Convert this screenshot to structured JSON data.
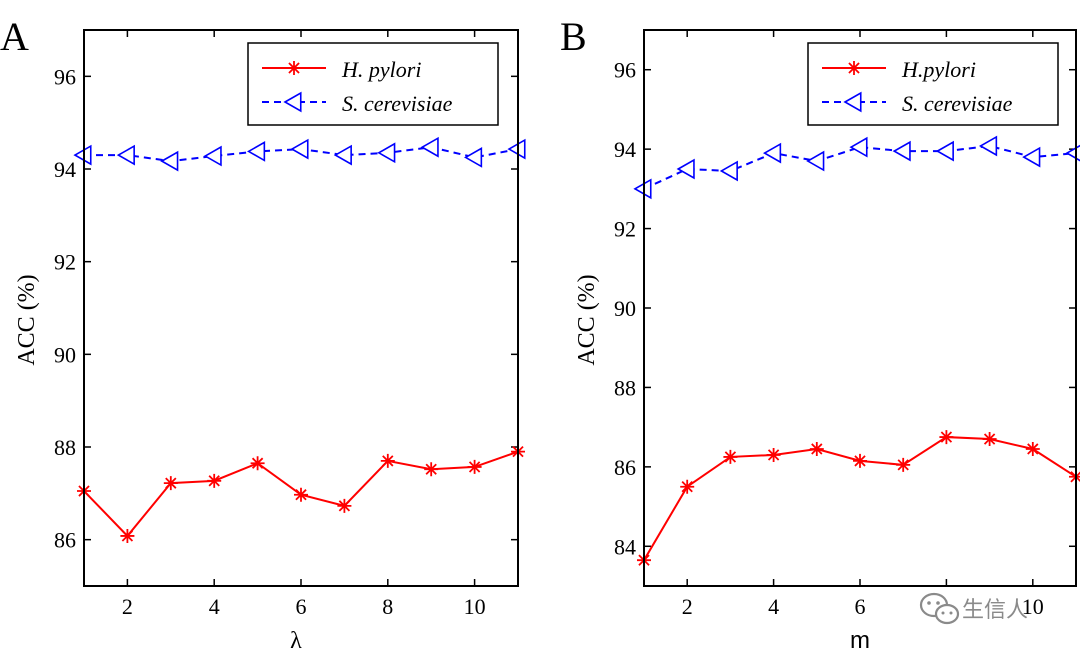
{
  "chart_data": [
    {
      "type": "line",
      "panel_label": "A",
      "xlabel": "λ",
      "ylabel": "ACC (%)",
      "xlim": [
        1,
        11
      ],
      "ylim": [
        85,
        97
      ],
      "xticks": [
        2,
        4,
        6,
        8,
        10
      ],
      "yticks": [
        86,
        88,
        90,
        92,
        94,
        96
      ],
      "x": [
        1,
        2,
        3,
        4,
        5,
        6,
        7,
        8,
        9,
        10,
        11
      ],
      "legend_position": "top-right",
      "series": [
        {
          "name": "H. pylori",
          "color": "#ff0000",
          "line_style": "solid",
          "marker": "asterisk",
          "values": [
            87.05,
            86.08,
            87.22,
            87.27,
            87.65,
            86.97,
            86.73,
            87.7,
            87.52,
            87.57,
            87.9
          ]
        },
        {
          "name": "S. cerevisiae",
          "color": "#0000ff",
          "line_style": "dashed",
          "marker": "left-triangle",
          "values": [
            94.3,
            94.3,
            94.17,
            94.28,
            94.38,
            94.43,
            94.3,
            94.35,
            94.47,
            94.25,
            94.43
          ]
        }
      ]
    },
    {
      "type": "line",
      "panel_label": "B",
      "xlabel": "m",
      "ylabel": "ACC (%)",
      "xlim": [
        1,
        11
      ],
      "ylim": [
        83,
        97
      ],
      "xticks": [
        2,
        4,
        6,
        8,
        10
      ],
      "xtick_labels": [
        "2",
        "4",
        "6",
        "",
        "10"
      ],
      "yticks": [
        84,
        86,
        88,
        90,
        92,
        94,
        96
      ],
      "x": [
        1,
        2,
        3,
        4,
        5,
        6,
        7,
        8,
        9,
        10,
        11
      ],
      "legend_position": "top-right",
      "series": [
        {
          "name": "H.pylori",
          "color": "#ff0000",
          "line_style": "solid",
          "marker": "asterisk",
          "values": [
            83.65,
            85.5,
            86.25,
            86.3,
            86.45,
            86.15,
            86.05,
            86.75,
            86.7,
            86.45,
            85.75
          ]
        },
        {
          "name": "S. cerevisiae",
          "color": "#0000ff",
          "line_style": "dashed",
          "marker": "left-triangle",
          "values": [
            93.0,
            93.5,
            93.45,
            93.9,
            93.7,
            94.05,
            93.95,
            93.95,
            94.08,
            93.8,
            93.9
          ]
        }
      ]
    }
  ],
  "watermark": {
    "text": "生信人",
    "icon": "wechat-icon"
  }
}
